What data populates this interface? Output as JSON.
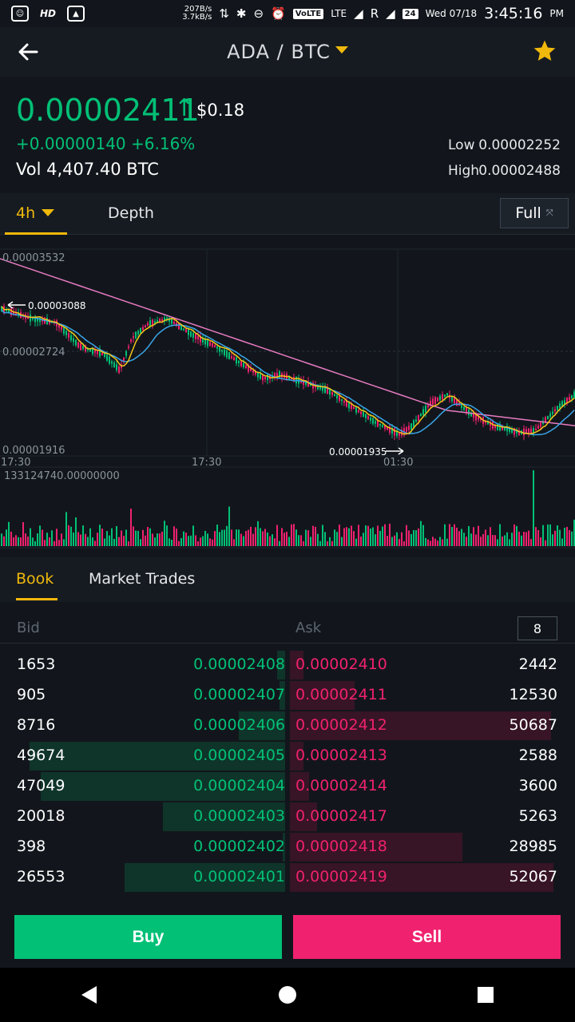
{
  "status_bar": {
    "hd": "HD",
    "speed_up": "207B/s",
    "speed_down": "3.7kB/s",
    "volte": "VoLTE",
    "lte": "LTE",
    "roaming": "R",
    "battery": "24",
    "date": "Wed 07/18",
    "time": "3:45:16",
    "ampm": "PM"
  },
  "header": {
    "pair": "ADA / BTC"
  },
  "summary": {
    "last_price": "0.00002411",
    "fiat": "$0.18",
    "change": "+0.00000140",
    "change_pct": "+6.16%",
    "volume": "Vol 4,407.40 BTC",
    "low_label": "Low",
    "low_value": "0.00002252",
    "high_label": "High",
    "high_value": "0.00002488"
  },
  "chart_tabs": {
    "interval": "4h",
    "depth": "Depth",
    "full": "Full"
  },
  "chart": {
    "y_top": "0.00003532",
    "y_mid": "0.00002724",
    "y_bottom": "0.00001916",
    "marker_high": "0.00003088",
    "marker_low": "0.00001935",
    "x_labels": [
      "17:30",
      "17:30",
      "01:30"
    ],
    "volume_max": "133124740.00000000",
    "colors": {
      "up": "#02c076",
      "down": "#f0216e",
      "ma7": "#f5c518",
      "ma25": "#3aa5e8",
      "ma99": "#e87ac2"
    }
  },
  "book_tabs": {
    "book": "Book",
    "trades": "Market Trades"
  },
  "order_book": {
    "bid_header": "Bid",
    "ask_header": "Ask",
    "depth": "8",
    "rows": [
      {
        "bid_qty": "1653",
        "bid_price": "0.00002408",
        "ask_price": "0.00002410",
        "ask_qty": "2442",
        "bid_fill": 0.03,
        "ask_fill": 0.05
      },
      {
        "bid_qty": "905",
        "bid_price": "0.00002407",
        "ask_price": "0.00002411",
        "ask_qty": "12530",
        "bid_fill": 0.02,
        "ask_fill": 0.24
      },
      {
        "bid_qty": "8716",
        "bid_price": "0.00002406",
        "ask_price": "0.00002412",
        "ask_qty": "50687",
        "bid_fill": 0.17,
        "ask_fill": 0.97
      },
      {
        "bid_qty": "49674",
        "bid_price": "0.00002405",
        "ask_price": "0.00002413",
        "ask_qty": "2588",
        "bid_fill": 0.94,
        "ask_fill": 0.05
      },
      {
        "bid_qty": "47049",
        "bid_price": "0.00002404",
        "ask_price": "0.00002414",
        "ask_qty": "3600",
        "bid_fill": 0.9,
        "ask_fill": 0.07
      },
      {
        "bid_qty": "20018",
        "bid_price": "0.00002403",
        "ask_price": "0.00002417",
        "ask_qty": "5263",
        "bid_fill": 0.45,
        "ask_fill": 0.1
      },
      {
        "bid_qty": "398",
        "bid_price": "0.00002402",
        "ask_price": "0.00002418",
        "ask_qty": "28985",
        "bid_fill": 0.01,
        "ask_fill": 0.64
      },
      {
        "bid_qty": "26553",
        "bid_price": "0.00002401",
        "ask_price": "0.00002419",
        "ask_qty": "52067",
        "bid_fill": 0.59,
        "ask_fill": 0.98
      }
    ]
  },
  "actions": {
    "buy": "Buy",
    "sell": "Sell"
  }
}
